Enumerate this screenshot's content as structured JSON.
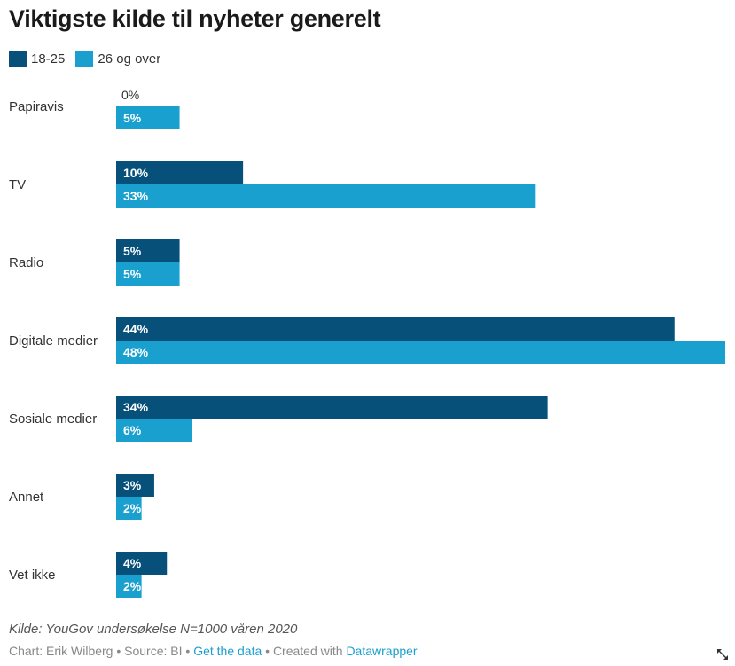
{
  "chart_data": {
    "type": "bar",
    "orientation": "horizontal",
    "title": "Viktigste kilde til nyheter generelt",
    "categories": [
      "Papiravis",
      "TV",
      "Radio",
      "Digitale medier",
      "Sosiale medier",
      "Annet",
      "Vet ikke"
    ],
    "series": [
      {
        "name": "18-25",
        "color": "#06507a",
        "values": [
          0,
          10,
          5,
          44,
          34,
          3,
          4
        ],
        "labels": [
          "0%",
          "10%",
          "5%",
          "44%",
          "34%",
          "3%",
          "4%"
        ]
      },
      {
        "name": "26 og over",
        "color": "#1aa0cf",
        "values": [
          5,
          33,
          5,
          48,
          6,
          2,
          2
        ],
        "labels": [
          "5%",
          "33%",
          "5%",
          "48%",
          "6%",
          "2%",
          "2%"
        ]
      }
    ],
    "xlim": [
      0,
      48
    ],
    "legend_position": "top-left",
    "grid": false
  },
  "footer": {
    "source_note": "Kilde: YouGov undersøkelse N=1000 våren 2020",
    "credit_prefix": "Chart: Erik Wilberg • Source: BI • ",
    "get_data": "Get the data",
    "created_with": " • Created with ",
    "datawrapper": "Datawrapper"
  },
  "icons": {
    "expand": "expand-icon"
  }
}
